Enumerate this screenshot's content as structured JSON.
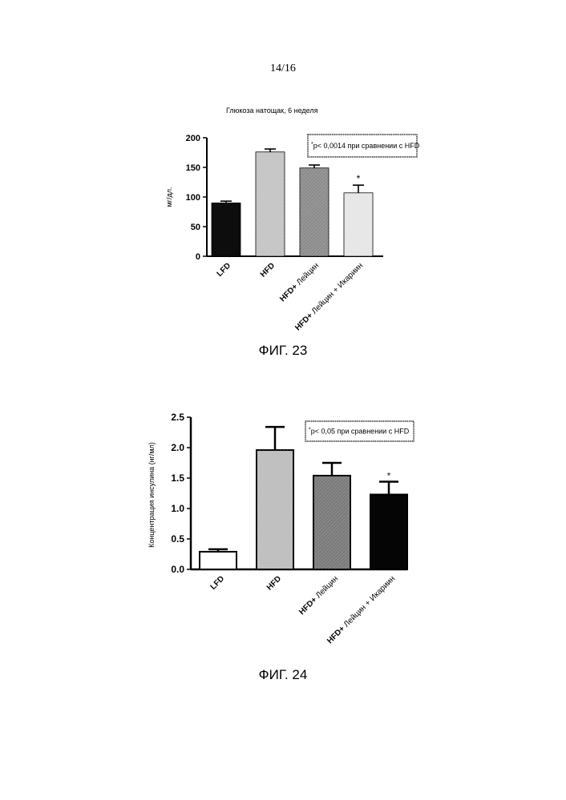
{
  "page": {
    "number": "14/16"
  },
  "figures": [
    {
      "caption": "ФИГ. 23"
    },
    {
      "caption": "ФИГ. 24"
    }
  ],
  "chart_data": [
    {
      "type": "bar",
      "title": "Глюкоза натощак, 6 неделя",
      "ylabel": "мг/дл.",
      "xlabel": "",
      "categories": [
        "LFD",
        "HFD",
        "HFD+ Лейцин",
        "HFD+ Лейцин + Икариин"
      ],
      "category_parts": [
        [
          "LFD",
          ""
        ],
        [
          "HFD",
          ""
        ],
        [
          "HFD+",
          " Лейцин"
        ],
        [
          "HFD+",
          " Лейцин  + Икариин"
        ]
      ],
      "values": [
        90,
        176,
        149,
        107
      ],
      "errors": [
        3,
        5,
        5,
        13
      ],
      "ylim": [
        0,
        200
      ],
      "yticks": [
        0,
        50,
        100,
        150,
        200
      ],
      "ytick_labels": [
        "0",
        "50",
        "100",
        "150",
        "200"
      ],
      "bar_colors": [
        "#0d0d0d",
        "#c4c4c4",
        "#8c8c8c",
        "#e6e6e6"
      ],
      "significance": [
        "",
        "",
        "",
        "*"
      ],
      "annotation": {
        "star": "*",
        "text": "p< 0,0014 при сравнении с HFD"
      },
      "grid": false
    },
    {
      "type": "bar",
      "title": "",
      "ylabel": "Концентрация инсулина (нг/мл)",
      "xlabel": "",
      "categories": [
        "LFD",
        "HFD",
        "HFD+ Лейцин",
        "HFD+ Лейцин + Икариин"
      ],
      "category_parts": [
        [
          "LFD",
          ""
        ],
        [
          "HFD",
          ""
        ],
        [
          "HFD+",
          " Лейцин"
        ],
        [
          "HFD+",
          " Лейцин  + Икариин"
        ]
      ],
      "values": [
        0.29,
        1.96,
        1.54,
        1.23
      ],
      "errors": [
        0.04,
        0.38,
        0.21,
        0.21
      ],
      "ylim": [
        0,
        2.5
      ],
      "yticks": [
        0,
        0.5,
        1.0,
        1.5,
        2.0,
        2.5
      ],
      "ytick_labels": [
        "0.0",
        "0.5",
        "1.0",
        "1.5",
        "2.0",
        "2.5"
      ],
      "bar_colors": [
        "#ffffff",
        "#bdbdbd",
        "#7a7a7a",
        "#050505"
      ],
      "significance": [
        "",
        "",
        "",
        "*"
      ],
      "annotation": {
        "star": "*",
        "text": "p< 0,05  при сравнении с HFD"
      },
      "grid": false
    }
  ]
}
